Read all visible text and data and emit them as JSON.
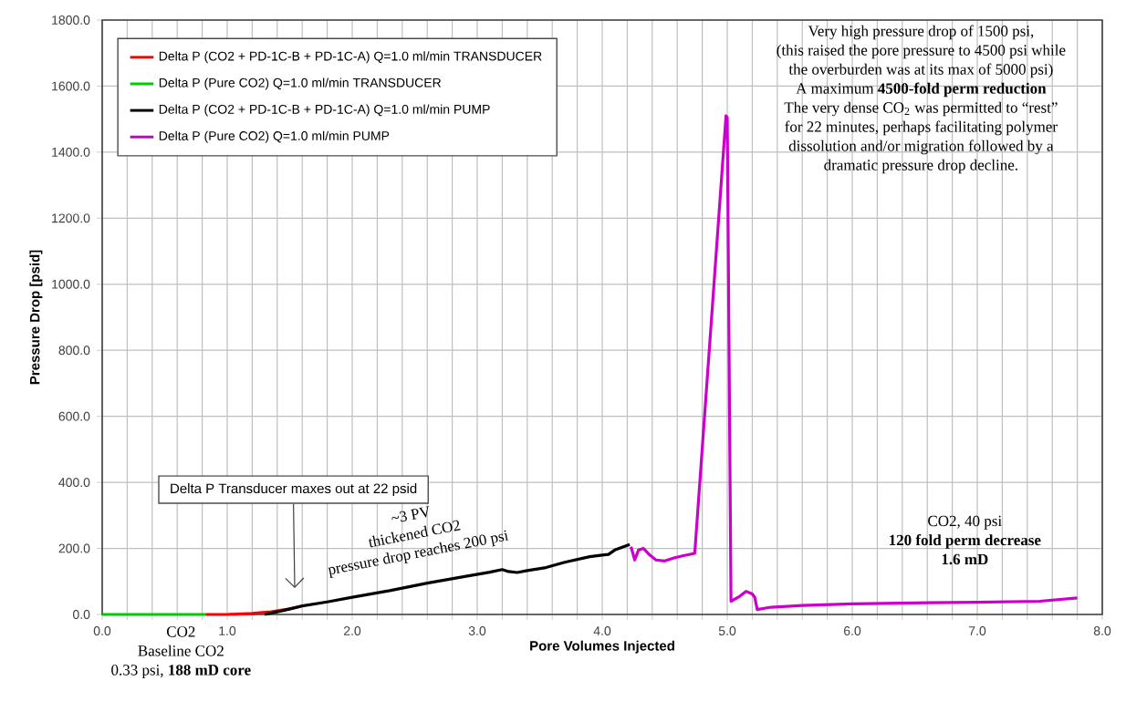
{
  "chart_data": {
    "type": "line",
    "xlabel": "Pore Volumes Injected",
    "ylabel": "Pressure Drop [psid]",
    "xlim": [
      0,
      8
    ],
    "ylim": [
      0,
      1800
    ],
    "xticks": [
      {
        "value": 0,
        "label": "0.0"
      },
      {
        "value": 0.2,
        "label": null
      },
      {
        "value": 0.4,
        "label": null
      },
      {
        "value": 0.6,
        "label": null
      },
      {
        "value": 0.8,
        "label": null
      },
      {
        "value": 1,
        "label": "1.0"
      },
      {
        "value": 1.2,
        "label": null
      },
      {
        "value": 1.4,
        "label": null
      },
      {
        "value": 1.6,
        "label": null
      },
      {
        "value": 1.8,
        "label": null
      },
      {
        "value": 2,
        "label": "2.0"
      },
      {
        "value": 2.2,
        "label": null
      },
      {
        "value": 2.4,
        "label": null
      },
      {
        "value": 2.6,
        "label": null
      },
      {
        "value": 2.8,
        "label": null
      },
      {
        "value": 3,
        "label": "3.0"
      },
      {
        "value": 3.2,
        "label": null
      },
      {
        "value": 3.4,
        "label": null
      },
      {
        "value": 3.6,
        "label": null
      },
      {
        "value": 3.8,
        "label": null
      },
      {
        "value": 4,
        "label": "4.0"
      },
      {
        "value": 4.2,
        "label": null
      },
      {
        "value": 4.4,
        "label": null
      },
      {
        "value": 4.6,
        "label": null
      },
      {
        "value": 4.8,
        "label": null
      },
      {
        "value": 5,
        "label": "5.0"
      },
      {
        "value": 5.2,
        "label": null
      },
      {
        "value": 5.4,
        "label": null
      },
      {
        "value": 5.6,
        "label": null
      },
      {
        "value": 5.8,
        "label": null
      },
      {
        "value": 6,
        "label": "6.0"
      },
      {
        "value": 6.2,
        "label": null
      },
      {
        "value": 6.4,
        "label": null
      },
      {
        "value": 6.6,
        "label": null
      },
      {
        "value": 6.8,
        "label": null
      },
      {
        "value": 7,
        "label": "7.0"
      },
      {
        "value": 7.2,
        "label": null
      },
      {
        "value": 7.4,
        "label": null
      },
      {
        "value": 7.6,
        "label": null
      },
      {
        "value": 7.8,
        "label": null
      },
      {
        "value": 8,
        "label": "8.0"
      }
    ],
    "yticks": [
      {
        "value": 0,
        "label": "0.0"
      },
      {
        "value": 200,
        "label": "200.0"
      },
      {
        "value": 400,
        "label": "400.0"
      },
      {
        "value": 600,
        "label": "600.0"
      },
      {
        "value": 800,
        "label": "800.0"
      },
      {
        "value": 1000,
        "label": "1000.0"
      },
      {
        "value": 1200,
        "label": "1200.0"
      },
      {
        "value": 1400,
        "label": "1400.0"
      },
      {
        "value": 1600,
        "label": "1600.0"
      },
      {
        "value": 1800,
        "label": "1800.0"
      }
    ],
    "grid": true,
    "legend": "top left",
    "series": [
      {
        "name": "Delta P (CO2 + PD-1C-B + PD-1C-A) Q=1.0 ml/min TRANSDUCER",
        "color": "#ff0000",
        "x": [
          0.83,
          1.0,
          1.2,
          1.35,
          1.5,
          1.59
        ],
        "values": [
          0,
          0,
          3,
          8,
          17,
          25
        ]
      },
      {
        "name": "Delta P (Pure CO2) Q=1.0 ml/min TRANSDUCER",
        "color": "#00cc00",
        "x": [
          0,
          0.83
        ],
        "values": [
          0,
          0
        ]
      },
      {
        "name": "Delta P (CO2 + PD-1C-B + PD-1C-A) Q=1.0 ml/min PUMP",
        "color": "#000000",
        "x": [
          1.3,
          1.45,
          1.59,
          1.8,
          2.0,
          2.3,
          2.6,
          2.9,
          3.1,
          3.2,
          3.25,
          3.32,
          3.4,
          3.55,
          3.7,
          3.9,
          4.0,
          4.05,
          4.1,
          4.22
        ],
        "values": [
          0,
          12,
          25,
          38,
          52,
          72,
          95,
          115,
          128,
          136,
          130,
          127,
          133,
          142,
          158,
          175,
          180,
          182,
          195,
          212
        ]
      },
      {
        "name": "Delta P (Pure CO2) Q=1.0 ml/min PUMP",
        "color": "#cc00cc",
        "x": [
          4.23,
          4.26,
          4.29,
          4.33,
          4.38,
          4.43,
          4.5,
          4.58,
          4.65,
          4.74,
          4.99,
          5.0,
          5.03,
          5.1,
          5.15,
          5.2,
          5.22,
          5.24,
          5.35,
          5.6,
          6.0,
          6.5,
          7.0,
          7.5,
          7.8
        ],
        "values": [
          205,
          165,
          195,
          200,
          180,
          165,
          162,
          172,
          178,
          185,
          1510,
          1505,
          40,
          55,
          70,
          62,
          52,
          15,
          22,
          27,
          32,
          35,
          37,
          40,
          50
        ]
      }
    ],
    "annotations": [
      "Delta P Transducer  maxes out at 22 psid",
      "~3 PV",
      "thickened CO2",
      "pressure drop reaches 200 psi",
      "Very high pressure drop of 1500 psi,",
      "(this raised the pore pressure to 4500 psi while",
      "the overburden was at its max of 5000 psi)",
      "A maximum **4500-fold perm reduction**",
      "The very dense CO$_{2}$ was permitted to “rest”",
      "for 22 minutes, perhaps facilitating polymer",
      "dissolution and/or migration followed by a",
      "dramatic pressure drop decline.",
      "CO2, 40 psi",
      "**120 fold perm decrease**",
      "**1.6 mD**",
      "CO2",
      "Baseline CO2",
      "0.33 psi, **188 mD core**"
    ]
  }
}
